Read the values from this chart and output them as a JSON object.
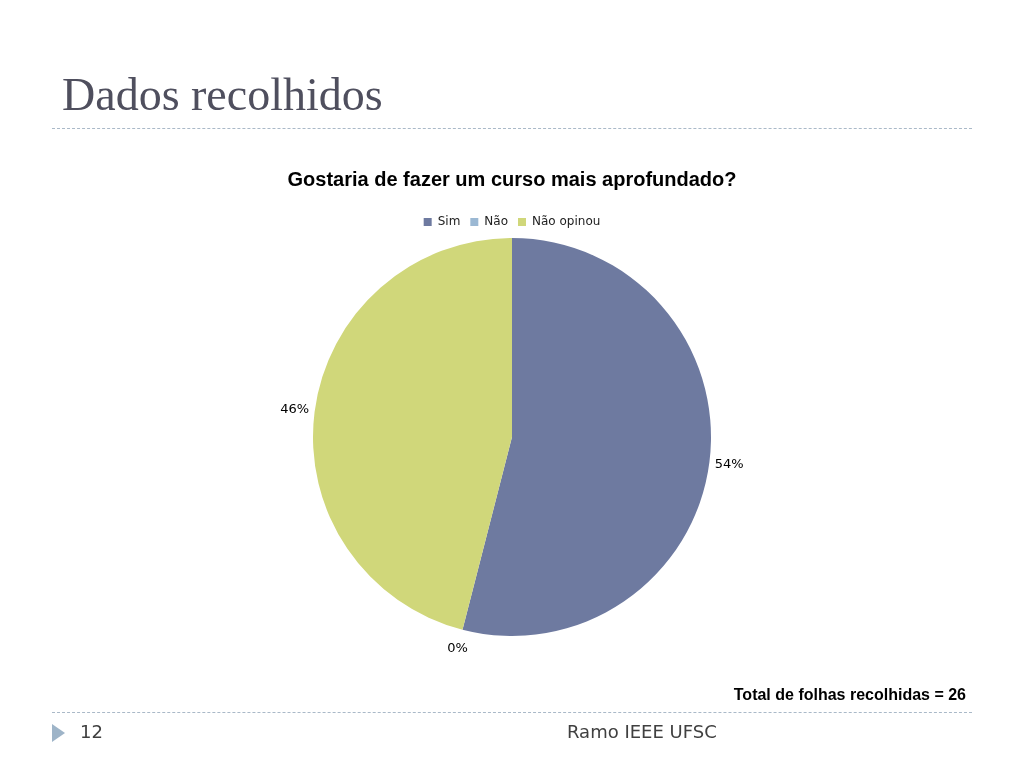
{
  "chart_data": {
    "type": "pie",
    "title": "Dados recolhidos",
    "subtitle": "Gostaria de fazer um curso mais aprofundado?",
    "categories": [
      "Sim",
      "Não",
      "Não opinou"
    ],
    "values": [
      54,
      0,
      46
    ],
    "colors": [
      "#6e7aa0",
      "#9bb8d3",
      "#d0d77a"
    ],
    "value_labels": [
      "54%",
      "0%",
      "46%"
    ],
    "legend": "top",
    "annotations": [
      "Total de folhas recolhidas = 26",
      "12",
      "Ramo IEEE UFSC"
    ]
  }
}
